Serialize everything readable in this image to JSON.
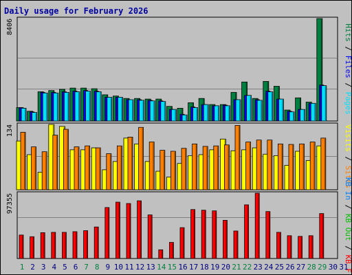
{
  "chart_data": {
    "type": "bar",
    "title": "Daily usage for February 2026",
    "categories": [
      "1",
      "2",
      "3",
      "4",
      "5",
      "6",
      "7",
      "8",
      "9",
      "10",
      "11",
      "12",
      "13",
      "14",
      "15",
      "16",
      "17",
      "18",
      "19",
      "20",
      "21",
      "22",
      "23",
      "24",
      "25",
      "26",
      "27",
      "28",
      "29",
      "30",
      "31"
    ],
    "weekend_days": [
      "1",
      "7",
      "8",
      "14",
      "15",
      "21",
      "22",
      "28",
      "29"
    ],
    "panels": [
      {
        "name": "hits-files-pages",
        "ymax_label": "8406",
        "ylim": [
          0,
          8406
        ],
        "series": [
          {
            "name": "Hits",
            "color": "#008040",
            "values": [
              1100,
              800,
              2400,
              2500,
              2600,
              2700,
              2700,
              2650,
              2150,
              2050,
              1850,
              1850,
              1800,
              1800,
              1200,
              1050,
              1500,
              1850,
              1350,
              1350,
              2350,
              3200,
              1850,
              3250,
              2850,
              900,
              1900,
              1550,
              8406
            ]
          },
          {
            "name": "Files",
            "color": "#0000ff",
            "values": [
              1100,
              750,
              2350,
              2350,
              2400,
              2450,
              2500,
              2450,
              1950,
              1950,
              1750,
              1750,
              1700,
              1650,
              950,
              550,
              1150,
              1350,
              1250,
              1300,
              1750,
              2100,
              1750,
              2450,
              1800,
              800,
              950,
              1450,
              2950
            ]
          },
          {
            "name": "Pages",
            "color": "#00e0ff",
            "values": [
              1050,
              700,
              2300,
              2300,
              2350,
              2400,
              2450,
              2400,
              1950,
              1950,
              1750,
              1700,
              1650,
              1600,
              950,
              500,
              1100,
              1350,
              1250,
              1250,
              1750,
              2100,
              1700,
              2400,
              1800,
              750,
              950,
              1450,
              2900
            ]
          }
        ]
      },
      {
        "name": "visits-sites",
        "ymax_label": "134",
        "ylim": [
          0,
          134
        ],
        "series": [
          {
            "name": "Visits",
            "color": "#ffff00",
            "values": [
              100,
              72,
              36,
              134,
              130,
              82,
              82,
              86,
              41,
              58,
              106,
              94,
              58,
              38,
              26,
              54,
              70,
              72,
              82,
              104,
              80,
              82,
              86,
              73,
              70,
              50,
              79,
              60,
              90
            ]
          },
          {
            "name": "Sites",
            "color": "#ff8000",
            "values": [
              118,
              88,
              78,
              112,
              124,
              88,
              90,
              86,
              74,
              90,
              108,
              128,
              98,
              81,
              79,
              85,
              94,
              89,
              90,
              92,
              132,
              98,
              102,
              102,
              94,
              93,
              94,
              98,
              106
            ]
          }
        ]
      },
      {
        "name": "kbytes",
        "ymax_label": "97355",
        "ylim": [
          0,
          97355
        ],
        "series": [
          {
            "name": "KBytes",
            "color": "#ff0000",
            "values": [
              35000,
              32500,
              38500,
              39000,
              39000,
              40000,
              41500,
              47000,
              76000,
              84000,
              82000,
              86000,
              65000,
              13000,
              24000,
              46000,
              73000,
              72000,
              71000,
              57000,
              41000,
              80000,
              97355,
              70000,
              39000,
              34000,
              33000,
              34000,
              67000
            ]
          }
        ]
      }
    ],
    "legend": [
      {
        "text": "Hits",
        "color": "#008040"
      },
      {
        "text": "Files",
        "color": "#0000ff"
      },
      {
        "text": "Pages",
        "color": "#00e0ff"
      },
      {
        "text": "Visits",
        "color": "#ffff00"
      },
      {
        "text": "Sites",
        "color": "#ff8000"
      },
      {
        "text": "KB In",
        "color": "#0080ff"
      },
      {
        "text": "KB Out",
        "color": "#00c000"
      },
      {
        "text": "KB F",
        "color": "#ff0000"
      }
    ],
    "legend_separator": "/",
    "grid": true,
    "colors": {
      "weekday_tick": "#000080",
      "weekend_tick": "#008040",
      "title": "#0000a0"
    }
  }
}
